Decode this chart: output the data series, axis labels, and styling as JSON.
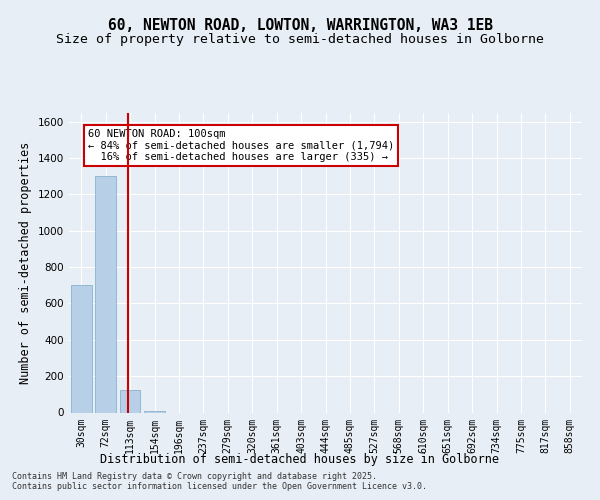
{
  "title_line1": "60, NEWTON ROAD, LOWTON, WARRINGTON, WA3 1EB",
  "title_line2": "Size of property relative to semi-detached houses in Golborne",
  "xlabel": "Distribution of semi-detached houses by size in Golborne",
  "ylabel": "Number of semi-detached properties",
  "categories": [
    "30sqm",
    "72sqm",
    "113sqm",
    "154sqm",
    "196sqm",
    "237sqm",
    "279sqm",
    "320sqm",
    "361sqm",
    "403sqm",
    "444sqm",
    "485sqm",
    "527sqm",
    "568sqm",
    "610sqm",
    "651sqm",
    "692sqm",
    "734sqm",
    "775sqm",
    "817sqm",
    "858sqm"
  ],
  "values": [
    700,
    1300,
    125,
    10,
    0,
    0,
    0,
    0,
    0,
    0,
    0,
    0,
    0,
    0,
    0,
    0,
    0,
    0,
    0,
    0,
    0
  ],
  "bar_color": "#b8cfe8",
  "bar_edge_color": "#7aaac8",
  "property_line_x": 1.93,
  "annotation_text": "60 NEWTON ROAD: 100sqm\n← 84% of semi-detached houses are smaller (1,794)\n  16% of semi-detached houses are larger (335) →",
  "annotation_box_color": "#ffffff",
  "annotation_box_edge_color": "#cc0000",
  "vline_color": "#cc0000",
  "ylim": [
    0,
    1650
  ],
  "background_color": "#e8eef5",
  "grid_color": "#ffffff",
  "footer_line1": "Contains HM Land Registry data © Crown copyright and database right 2025.",
  "footer_line2": "Contains public sector information licensed under the Open Government Licence v3.0.",
  "title_fontsize": 10.5,
  "subtitle_fontsize": 9.5,
  "tick_fontsize": 7.0,
  "ylabel_fontsize": 8.5,
  "xlabel_fontsize": 8.5,
  "annot_fontsize": 7.5,
  "footer_fontsize": 6.0
}
